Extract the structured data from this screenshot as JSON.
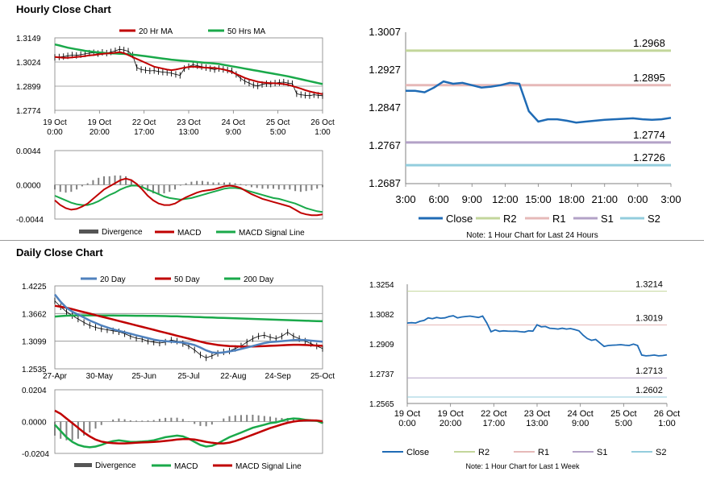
{
  "sections": {
    "hourly_title": "Hourly Close Chart",
    "daily_title": "Daily Close Chart"
  },
  "colors": {
    "red": "#c00000",
    "green": "#1aa94a",
    "blue": "#4f81bd",
    "darkblue": "#1f6bb5",
    "r2": "#c3d69b",
    "r1": "#e6b9b8",
    "s1": "#b3a2c7",
    "s2": "#93cddd",
    "grey": "#808080"
  },
  "chart_data": [
    {
      "id": "hourly_price",
      "type": "line",
      "legend": [
        "20 Hr MA",
        "50 Hrs MA"
      ],
      "y_ticks": [
        "1.3149",
        "1.3024",
        "1.2899",
        "1.2774"
      ],
      "ylim": [
        1.2774,
        1.3149
      ],
      "x_ticks": [
        [
          "19 Oct",
          "0:00"
        ],
        [
          "19 Oct",
          "20:00"
        ],
        [
          "22 Oct",
          "17:00"
        ],
        [
          "23 Oct",
          "13:00"
        ],
        [
          "24 Oct",
          "9:00"
        ],
        [
          "25 Oct",
          "5:00"
        ],
        [
          "26 Oct",
          "1:00"
        ]
      ],
      "close": [
        1.3048,
        1.305,
        1.3052,
        1.3056,
        1.306,
        1.3058,
        1.3062,
        1.3066,
        1.307,
        1.3072,
        1.3068,
        1.3074,
        1.307,
        1.3076,
        1.3082,
        1.309,
        1.3086,
        1.308,
        1.306,
        1.2995,
        1.2985,
        1.2982,
        1.2978,
        1.298,
        1.2975,
        1.2972,
        1.297,
        1.2966,
        1.296,
        1.2955,
        1.299,
        1.3,
        1.301,
        1.3005,
        1.3,
        1.2995,
        1.299,
        1.2985,
        1.299,
        1.2986,
        1.2982,
        1.2978,
        1.296,
        1.294,
        1.2925,
        1.2915,
        1.2905,
        1.29,
        1.2908,
        1.2912,
        1.291,
        1.2915,
        1.2918,
        1.292,
        1.2915,
        1.2912,
        1.286,
        1.2855,
        1.2852,
        1.285,
        1.2855,
        1.2852,
        1.285
      ],
      "ma20": [
        1.305,
        1.3048,
        1.3046,
        1.3046,
        1.3048,
        1.305,
        1.3052,
        1.3055,
        1.3058,
        1.306,
        1.3063,
        1.3066,
        1.3068,
        1.307,
        1.3072,
        1.3075,
        1.307,
        1.306,
        1.305,
        1.304,
        1.303,
        1.302,
        1.301,
        1.3,
        1.2995,
        1.299,
        1.2985,
        1.2982,
        1.2985,
        1.299,
        1.2995,
        1.2998,
        1.3,
        1.2998,
        1.2996,
        1.2995,
        1.2994,
        1.2993,
        1.299,
        1.2986,
        1.298,
        1.2972,
        1.2962,
        1.2952,
        1.2942,
        1.2934,
        1.2928,
        1.2922,
        1.2918,
        1.2916,
        1.2915,
        1.2914,
        1.2912,
        1.291,
        1.2906,
        1.29,
        1.2893,
        1.2886,
        1.2878,
        1.2872,
        1.2866,
        1.2862,
        1.2858
      ],
      "ma50": [
        1.3115,
        1.311,
        1.3104,
        1.3098,
        1.3094,
        1.309,
        1.3086,
        1.3082,
        1.3079,
        1.3076,
        1.3074,
        1.3072,
        1.307,
        1.3069,
        1.3068,
        1.3067,
        1.3066,
        1.3064,
        1.3062,
        1.306,
        1.3057,
        1.3054,
        1.3051,
        1.3048,
        1.3045,
        1.3042,
        1.3039,
        1.3036,
        1.3034,
        1.3032,
        1.303,
        1.3028,
        1.3026,
        1.3024,
        1.3022,
        1.302,
        1.3018,
        1.3016,
        1.3014,
        1.301,
        1.3006,
        1.3002,
        1.2998,
        1.2994,
        1.299,
        1.2986,
        1.2982,
        1.2978,
        1.2974,
        1.297,
        1.2966,
        1.2962,
        1.2958,
        1.2954,
        1.295,
        1.2945,
        1.294,
        1.2935,
        1.293,
        1.2925,
        1.292,
        1.2915,
        1.291
      ]
    },
    {
      "id": "hourly_macd",
      "type": "line",
      "legend": [
        "Divergence",
        "MACD",
        "MACD Signal Line"
      ],
      "y_ticks": [
        "0.0044",
        "0.0000",
        "-0.0044"
      ],
      "ylim": [
        -0.0044,
        0.0044
      ],
      "macd": [
        -0.002,
        -0.0026,
        -0.003,
        -0.0032,
        -0.0031,
        -0.0028,
        -0.0024,
        -0.0018,
        -0.0012,
        -0.0006,
        -0.0002,
        0.0002,
        0.0006,
        0.0008,
        0.0006,
        0.0001,
        -0.0006,
        -0.0014,
        -0.002,
        -0.0024,
        -0.0026,
        -0.0026,
        -0.0024,
        -0.002,
        -0.0016,
        -0.0013,
        -0.001,
        -0.0008,
        -0.0007,
        -0.0006,
        -0.0004,
        -0.0002,
        -0.0001,
        -0.0002,
        -0.0004,
        -0.0008,
        -0.0012,
        -0.0015,
        -0.0018,
        -0.002,
        -0.0022,
        -0.0024,
        -0.0026,
        -0.0028,
        -0.0032,
        -0.0036,
        -0.0038,
        -0.0039,
        -0.0039,
        -0.0038
      ],
      "signal": [
        -0.0014,
        -0.0017,
        -0.002,
        -0.0023,
        -0.0025,
        -0.0026,
        -0.0026,
        -0.0024,
        -0.0021,
        -0.0017,
        -0.0013,
        -0.001,
        -0.0006,
        -0.0003,
        -0.0001,
        -0.0001,
        -0.0003,
        -0.0006,
        -0.0009,
        -0.0012,
        -0.0015,
        -0.0017,
        -0.0018,
        -0.0019,
        -0.0018,
        -0.0017,
        -0.0015,
        -0.0013,
        -0.0011,
        -0.0009,
        -0.0007,
        -0.0005,
        -0.0004,
        -0.0004,
        -0.0005,
        -0.0007,
        -0.0009,
        -0.0011,
        -0.0013,
        -0.0015,
        -0.0017,
        -0.0018,
        -0.002,
        -0.0022,
        -0.0024,
        -0.0027,
        -0.003,
        -0.0032,
        -0.0034,
        -0.0035
      ]
    },
    {
      "id": "hourly_24h",
      "type": "line",
      "y_ticks": [
        "1.3007",
        "1.2927",
        "1.2847",
        "1.2767",
        "1.2687"
      ],
      "ylim": [
        1.2687,
        1.3007
      ],
      "x_ticks": [
        "3:00",
        "6:00",
        "9:00",
        "12:00",
        "15:00",
        "18:00",
        "21:00",
        "0:00",
        "3:00"
      ],
      "close": [
        1.2883,
        1.2883,
        1.288,
        1.289,
        1.2903,
        1.2898,
        1.29,
        1.2895,
        1.289,
        1.2892,
        1.2895,
        1.29,
        1.2898,
        1.284,
        1.2818,
        1.2823,
        1.2823,
        1.282,
        1.2816,
        1.2818,
        1.282,
        1.2822,
        1.2823,
        1.2824,
        1.2825,
        1.2823,
        1.2822,
        1.2823,
        1.2826
      ],
      "levels": {
        "R2": 1.2968,
        "R1": 1.2895,
        "S1": 1.2774,
        "S2": 1.2726
      },
      "level_labels": [
        "1.2968",
        "1.2895",
        "1.2774",
        "1.2726"
      ],
      "legend": [
        "Close",
        "R2",
        "R1",
        "S1",
        "S2"
      ],
      "note": "Note: 1 Hour Chart for Last 24 Hours"
    },
    {
      "id": "daily_price",
      "type": "line",
      "legend": [
        "20 Day",
        "50 Day",
        "200 Day"
      ],
      "y_ticks": [
        "1.4225",
        "1.3662",
        "1.3099",
        "1.2535"
      ],
      "ylim": [
        1.2535,
        1.4225
      ],
      "x_ticks": [
        "27-Apr",
        "30-May",
        "25-Jun",
        "25-Jul",
        "22-Aug",
        "24-Sep",
        "25-Oct"
      ],
      "close": [
        1.392,
        1.38,
        1.37,
        1.362,
        1.355,
        1.348,
        1.342,
        1.338,
        1.335,
        1.333,
        1.331,
        1.329,
        1.325,
        1.32,
        1.316,
        1.314,
        1.31,
        1.308,
        1.306,
        1.308,
        1.312,
        1.31,
        1.305,
        1.3,
        1.292,
        1.282,
        1.276,
        1.28,
        1.285,
        1.288,
        1.29,
        1.295,
        1.3,
        1.308,
        1.315,
        1.32,
        1.322,
        1.318,
        1.315,
        1.32,
        1.328,
        1.32,
        1.315,
        1.31,
        1.305,
        1.3,
        1.295
      ],
      "ma20": [
        1.405,
        1.39,
        1.378,
        1.37,
        1.364,
        1.358,
        1.352,
        1.347,
        1.342,
        1.338,
        1.334,
        1.331,
        1.328,
        1.325,
        1.322,
        1.319,
        1.316,
        1.313,
        1.311,
        1.31,
        1.309,
        1.308,
        1.307,
        1.305,
        1.302,
        1.297,
        1.291,
        1.287,
        1.286,
        1.287,
        1.289,
        1.291,
        1.294,
        1.297,
        1.3,
        1.303,
        1.306,
        1.308,
        1.309,
        1.31,
        1.311,
        1.312,
        1.3125,
        1.312,
        1.311,
        1.31,
        1.309
      ],
      "ma50": [
        1.382,
        1.38,
        1.378,
        1.375,
        1.372,
        1.369,
        1.366,
        1.363,
        1.36,
        1.357,
        1.354,
        1.351,
        1.348,
        1.345,
        1.342,
        1.339,
        1.336,
        1.333,
        1.33,
        1.327,
        1.324,
        1.321,
        1.318,
        1.315,
        1.312,
        1.309,
        1.306,
        1.304,
        1.302,
        1.301,
        1.3,
        1.2995,
        1.299,
        1.2988,
        1.299,
        1.2995,
        1.3,
        1.3005,
        1.301,
        1.3015,
        1.302,
        1.3025,
        1.3025,
        1.302,
        1.3015,
        1.301,
        1.3005
      ],
      "ma200": [
        1.36,
        1.361,
        1.3618,
        1.3622,
        1.3624,
        1.3625,
        1.3625,
        1.3624,
        1.3623,
        1.3622,
        1.3621,
        1.362,
        1.3619,
        1.3618,
        1.3617,
        1.3616,
        1.3615,
        1.3613,
        1.3611,
        1.3609,
        1.3607,
        1.3604,
        1.36,
        1.3596,
        1.3592,
        1.3588,
        1.3584,
        1.358,
        1.3576,
        1.3572,
        1.3568,
        1.3564,
        1.356,
        1.3556,
        1.3552,
        1.3548,
        1.3544,
        1.354,
        1.3536,
        1.3532,
        1.3528,
        1.3524,
        1.352,
        1.3516,
        1.3512,
        1.3508,
        1.3504
      ]
    },
    {
      "id": "daily_macd",
      "type": "line",
      "legend": [
        "Divergence",
        "MACD",
        "MACD Signal Line"
      ],
      "y_ticks": [
        "0.0204",
        "0.0000",
        "-0.0204"
      ],
      "ylim": [
        -0.0204,
        0.0204
      ],
      "macd": [
        -0.002,
        -0.006,
        -0.01,
        -0.013,
        -0.015,
        -0.016,
        -0.0165,
        -0.016,
        -0.015,
        -0.0135,
        -0.0125,
        -0.012,
        -0.0125,
        -0.013,
        -0.013,
        -0.0128,
        -0.0125,
        -0.012,
        -0.011,
        -0.01,
        -0.0095,
        -0.009,
        -0.0095,
        -0.011,
        -0.013,
        -0.015,
        -0.016,
        -0.0155,
        -0.014,
        -0.012,
        -0.01,
        -0.0085,
        -0.007,
        -0.0055,
        -0.004,
        -0.003,
        -0.002,
        -0.001,
        -0.0005,
        0.0005,
        0.0015,
        0.002,
        0.0018,
        0.0012,
        0.0008,
        0.0005,
        -0.001
      ],
      "signal": [
        0.007,
        0.005,
        0.002,
        -0.001,
        -0.004,
        -0.007,
        -0.0095,
        -0.0115,
        -0.0128,
        -0.0135,
        -0.0138,
        -0.014,
        -0.014,
        -0.0138,
        -0.0136,
        -0.0134,
        -0.0132,
        -0.013,
        -0.0128,
        -0.0124,
        -0.012,
        -0.0115,
        -0.0112,
        -0.0112,
        -0.0115,
        -0.0122,
        -0.013,
        -0.0136,
        -0.014,
        -0.014,
        -0.0135,
        -0.0125,
        -0.0112,
        -0.0098,
        -0.0084,
        -0.007,
        -0.0056,
        -0.0042,
        -0.003,
        -0.0018,
        -0.0008,
        0.0,
        0.0005,
        0.0008,
        0.0008,
        0.0007,
        0.0002
      ]
    },
    {
      "id": "weekly_hourly",
      "type": "line",
      "y_ticks": [
        "1.3254",
        "1.3082",
        "1.2909",
        "1.2737",
        "1.2565"
      ],
      "ylim": [
        1.2565,
        1.3254
      ],
      "x_ticks": [
        [
          "19 Oct",
          "0:00"
        ],
        [
          "19 Oct",
          "20:00"
        ],
        [
          "22 Oct",
          "17:00"
        ],
        [
          "23 Oct",
          "13:00"
        ],
        [
          "24 Oct",
          "9:00"
        ],
        [
          "25 Oct",
          "5:00"
        ],
        [
          "26 Oct",
          "1:00"
        ]
      ],
      "close": [
        1.303,
        1.3032,
        1.303,
        1.304,
        1.3045,
        1.306,
        1.3055,
        1.3062,
        1.3058,
        1.306,
        1.3068,
        1.3072,
        1.306,
        1.3065,
        1.3068,
        1.307,
        1.3066,
        1.3062,
        1.307,
        1.303,
        1.298,
        1.299,
        1.2982,
        1.2985,
        1.2983,
        1.2982,
        1.2983,
        1.298,
        1.2978,
        1.2985,
        1.2983,
        1.302,
        1.3008,
        1.301,
        1.3,
        1.2998,
        1.2995,
        1.3,
        1.2995,
        1.2998,
        1.2992,
        1.2985,
        1.296,
        1.294,
        1.293,
        1.2935,
        1.2915,
        1.2895,
        1.29,
        1.2902,
        1.2903,
        1.2905,
        1.2902,
        1.29,
        1.2908,
        1.29,
        1.2845,
        1.284,
        1.2842,
        1.2845,
        1.284,
        1.2842,
        1.2846
      ],
      "levels": {
        "R2": 1.3214,
        "R1": 1.3019,
        "S1": 1.2713,
        "S2": 1.2602
      },
      "level_labels": [
        "1.3214",
        "1.3019",
        "1.2713",
        "1.2602"
      ],
      "legend": [
        "Close",
        "R2",
        "R1",
        "S1",
        "S2"
      ],
      "note": "Note: 1 Hour Chart for Last 1 Week"
    }
  ]
}
